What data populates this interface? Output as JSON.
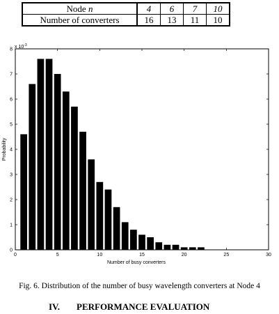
{
  "table": {
    "row1": {
      "label": "Node",
      "label_var": "n",
      "values": [
        "4",
        "6",
        "7",
        "10"
      ]
    },
    "row2": {
      "label": "Number of converters",
      "values": [
        "16",
        "13",
        "11",
        "10"
      ]
    }
  },
  "chart_data": {
    "type": "bar",
    "x": [
      1,
      2,
      3,
      4,
      5,
      6,
      7,
      8,
      9,
      10,
      11,
      12,
      13,
      14,
      15,
      16,
      17,
      18,
      19,
      20,
      21,
      22
    ],
    "values": [
      0.0046,
      0.0066,
      0.0076,
      0.0076,
      0.007,
      0.0063,
      0.0057,
      0.0047,
      0.0036,
      0.0027,
      0.0024,
      0.0017,
      0.0011,
      0.0008,
      0.0006,
      0.0005,
      0.0003,
      0.0002,
      0.0002,
      0.0001,
      0.0001,
      0.0001
    ],
    "xlabel": "Number of busy converters",
    "ylabel": "Probability",
    "xlim": [
      0,
      30
    ],
    "ylim": [
      0,
      0.008
    ],
    "x_ticks": [
      "0",
      "5",
      "10",
      "15",
      "20",
      "25",
      "30"
    ],
    "y_ticks": [
      "0",
      "1",
      "2",
      "3",
      "4",
      "5",
      "6",
      "7",
      "8"
    ],
    "y_multiplier": "x 10",
    "y_multiplier_exp": "-3",
    "bar_color": "#000000",
    "grid": false
  },
  "caption": "Fig. 6. Distribution of the number of busy wavelength converters at Node 4",
  "section": {
    "number": "IV.",
    "title": "PERFORMANCE EVALUATION"
  }
}
